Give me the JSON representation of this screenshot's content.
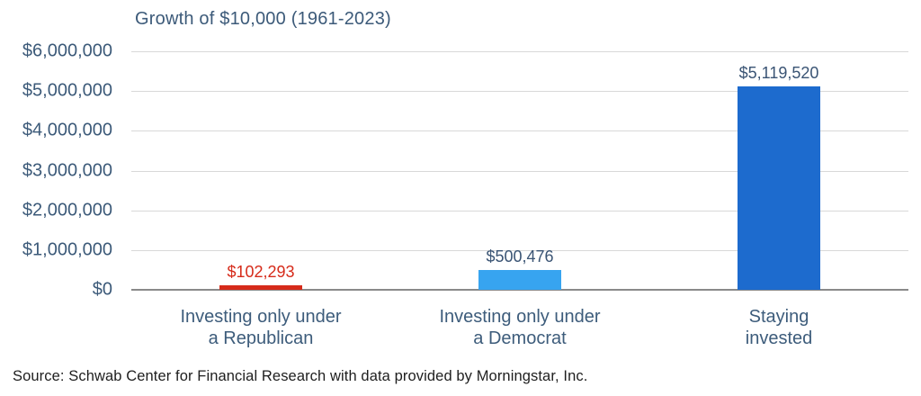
{
  "chart_data": {
    "type": "bar",
    "title": "Growth of $10,000 (1961-2023)",
    "xlabel": "",
    "ylabel": "",
    "ylim": [
      0,
      6000000
    ],
    "grid": true,
    "legend": "none",
    "yticks": [
      {
        "value": 0,
        "label": "$0"
      },
      {
        "value": 1000000,
        "label": "$1,000,000"
      },
      {
        "value": 2000000,
        "label": "$2,000,000"
      },
      {
        "value": 3000000,
        "label": "$3,000,000"
      },
      {
        "value": 4000000,
        "label": "$4,000,000"
      },
      {
        "value": 5000000,
        "label": "$5,000,000"
      },
      {
        "value": 6000000,
        "label": "$6,000,000"
      }
    ],
    "categories": [
      "Investing only under a Republican",
      "Investing only under a Democrat",
      "Staying invested"
    ],
    "bars": [
      {
        "category_lines": [
          "Investing only under",
          "a Republican"
        ],
        "value": 102293,
        "value_label": "$102,293",
        "bar_color": "#d62b1a",
        "value_label_color": "#d62b1a"
      },
      {
        "category_lines": [
          "Investing only under",
          "a Democrat"
        ],
        "value": 500476,
        "value_label": "$500,476",
        "bar_color": "#37a4f0",
        "value_label_color": "#3a5474"
      },
      {
        "category_lines": [
          "Staying",
          "invested"
        ],
        "value": 5119520,
        "value_label": "$5,119,520",
        "bar_color": "#1d6bce",
        "value_label_color": "#3a5474"
      }
    ]
  },
  "source": "Source: Schwab Center for Financial Research with data provided by Morningstar, Inc.",
  "colors": {
    "title_text": "#3c5a79",
    "tick_text": "#3c5a79",
    "category_text": "#3d5c7b",
    "gridline": "#d8d8d8",
    "baseline": "#8a8a8a",
    "source_text": "#1e1e1e",
    "background": "#ffffff"
  }
}
